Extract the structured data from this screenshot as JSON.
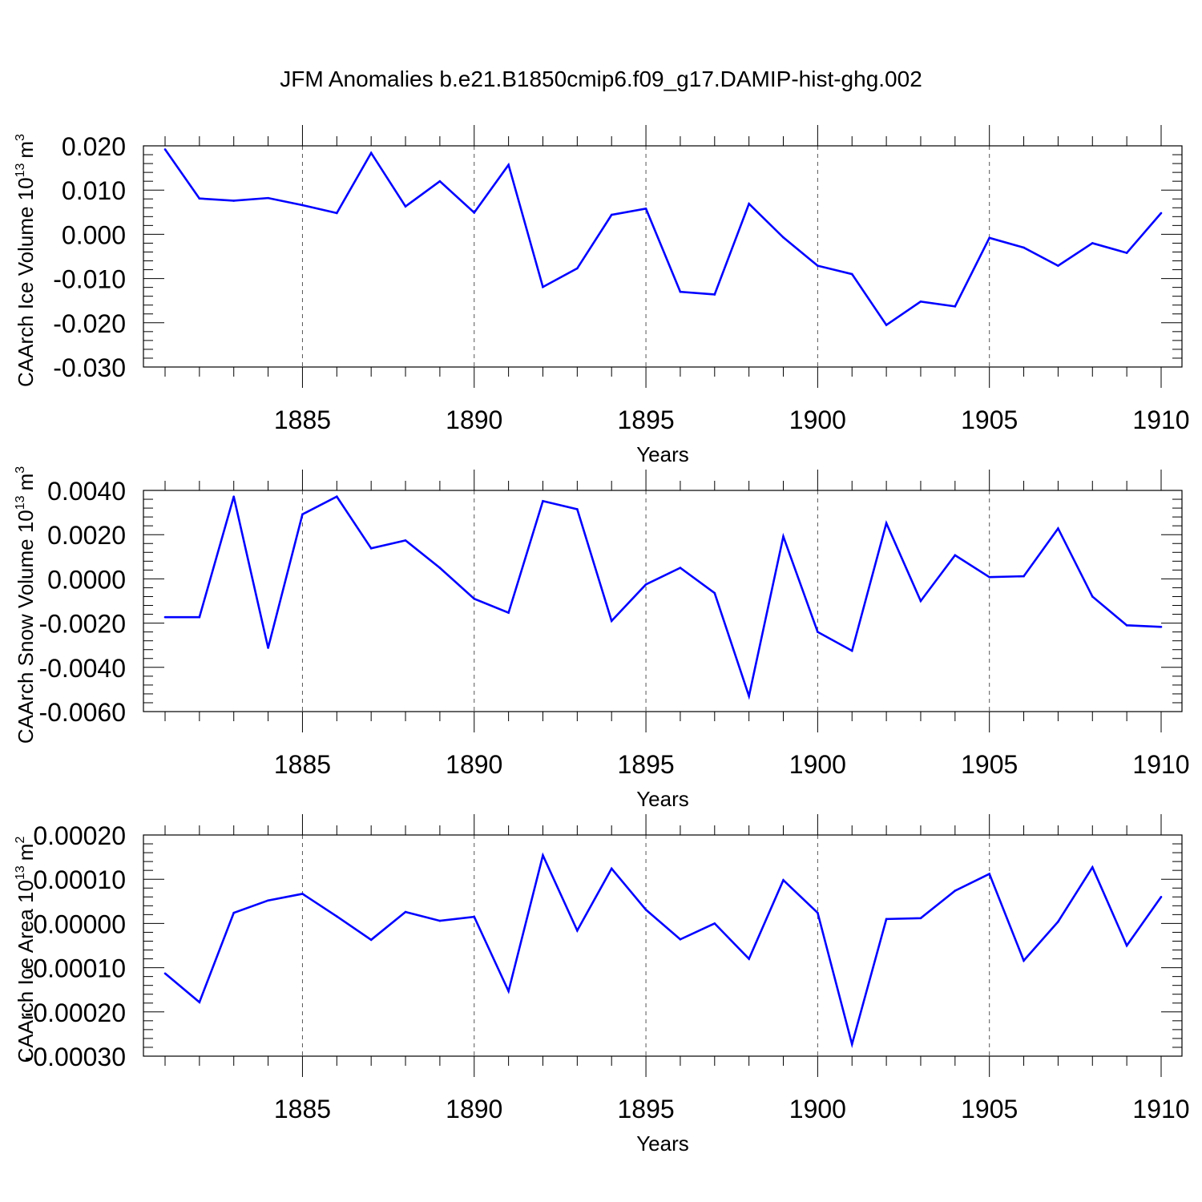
{
  "title": "JFM Anomalies b.e21.B1850cmip6.f09_g17.DAMIP-hist-ghg.002",
  "colors": {
    "series": "#0000ff",
    "axes": "#000000",
    "grid": "#555555",
    "background": "#ffffff"
  },
  "chart_data": [
    {
      "type": "line",
      "ylabel": "CAArch Ice Volume 10",
      "ylabel_exponent": "13",
      "ylabel_unit": "m",
      "ylabel_unit_exponent": "3",
      "xlabel": "Years",
      "xlim": [
        1881,
        1910
      ],
      "ylim": [
        -0.03,
        0.02
      ],
      "xticks": [
        "1885",
        "1890",
        "1895",
        "1900",
        "1905",
        "1910"
      ],
      "yticks": [
        "0.020",
        "0.010",
        "0.000",
        "-0.010",
        "-0.020",
        "-0.030"
      ],
      "grid": "vertical dashed at major x ticks",
      "series": [
        {
          "color": "#0000ff",
          "x": [
            1881,
            1882,
            1883,
            1884,
            1885,
            1886,
            1887,
            1888,
            1889,
            1890,
            1891,
            1892,
            1893,
            1894,
            1895,
            1896,
            1897,
            1898,
            1899,
            1900,
            1901,
            1902,
            1903,
            1904,
            1905,
            1906,
            1907,
            1908,
            1909,
            1910
          ],
          "values": [
            0.0192,
            0.0081,
            0.0076,
            0.0082,
            0.0066,
            0.0048,
            0.0184,
            0.0063,
            0.012,
            0.0049,
            0.0157,
            -0.0119,
            -0.0077,
            0.0044,
            0.0058,
            -0.013,
            -0.0136,
            0.0069,
            -0.0007,
            -0.0071,
            -0.009,
            -0.0205,
            -0.0152,
            -0.0163,
            -0.0008,
            -0.003,
            -0.0071,
            -0.002,
            -0.0042,
            0.0048
          ]
        }
      ]
    },
    {
      "type": "line",
      "ylabel": "CAArch Snow Volume 10",
      "ylabel_exponent": "13",
      "ylabel_unit": "m",
      "ylabel_unit_exponent": "3",
      "xlabel": "Years",
      "xlim": [
        1881,
        1910
      ],
      "ylim": [
        -0.006,
        0.004
      ],
      "xticks": [
        "1885",
        "1890",
        "1895",
        "1900",
        "1905",
        "1910"
      ],
      "yticks": [
        "0.0040",
        "0.0020",
        "0.0000",
        "-0.0020",
        "-0.0040",
        "-0.0060"
      ],
      "grid": "vertical dashed at major x ticks",
      "series": [
        {
          "color": "#0000ff",
          "x": [
            1881,
            1882,
            1883,
            1884,
            1885,
            1886,
            1887,
            1888,
            1889,
            1890,
            1891,
            1892,
            1893,
            1894,
            1895,
            1896,
            1897,
            1898,
            1899,
            1900,
            1901,
            1902,
            1903,
            1904,
            1905,
            1906,
            1907,
            1908,
            1909,
            1910
          ],
          "values": [
            -0.00173,
            -0.00173,
            0.00372,
            -0.00312,
            0.00292,
            0.00372,
            0.00138,
            0.00174,
            0.0005,
            -0.0009,
            -0.00153,
            0.00352,
            0.00315,
            -0.0019,
            -0.00025,
            0.0005,
            -0.00064,
            -0.0053,
            0.00192,
            -0.0024,
            -0.00325,
            0.00252,
            -0.001,
            0.00107,
            8e-05,
            0.00012,
            0.00228,
            -0.0008,
            -0.0021,
            -0.00217
          ]
        }
      ]
    },
    {
      "type": "line",
      "ylabel": "CAArch Ice Area 10",
      "ylabel_exponent": "13",
      "ylabel_unit": "m",
      "ylabel_unit_exponent": "2",
      "xlabel": "Years",
      "xlim": [
        1881,
        1910
      ],
      "ylim": [
        -0.0003,
        0.0002
      ],
      "xticks": [
        "1885",
        "1890",
        "1895",
        "1900",
        "1905",
        "1910"
      ],
      "yticks": [
        "0.00020",
        "0.00010",
        "0.00000",
        "-0.00010",
        "-0.00020",
        "-0.00030"
      ],
      "grid": "vertical dashed at major x ticks",
      "series": [
        {
          "color": "#0000ff",
          "x": [
            1881,
            1882,
            1883,
            1884,
            1885,
            1886,
            1887,
            1888,
            1889,
            1890,
            1891,
            1892,
            1893,
            1894,
            1895,
            1896,
            1897,
            1898,
            1899,
            1900,
            1901,
            1902,
            1903,
            1904,
            1905,
            1906,
            1907,
            1908,
            1909,
            1910
          ],
          "values": [
            -0.000113,
            -0.000178,
            2.4e-05,
            5.2e-05,
            6.7e-05,
            1.6e-05,
            -3.7e-05,
            2.6e-05,
            6e-06,
            1.5e-05,
            -0.000153,
            0.000154,
            -1.6e-05,
            0.000124,
            3.1e-05,
            -3.6e-05,
            0.0,
            -8e-05,
            9.8e-05,
            2.4e-05,
            -0.000273,
            1e-05,
            1.2e-05,
            7.4e-05,
            0.000112,
            -8.4e-05,
            4e-06,
            0.000127,
            -5e-05,
            6e-05
          ]
        }
      ]
    }
  ]
}
